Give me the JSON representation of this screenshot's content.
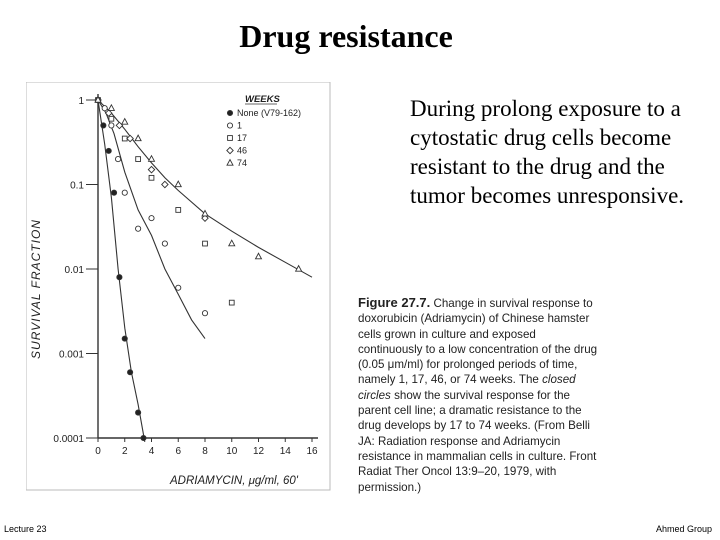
{
  "slide": {
    "title": "Drug resistance",
    "body": "During prolong exposure to a cytostatic drug cells become resistant to the drug and the tumor becomes unresponsive.",
    "footer_left": "Lecture 23",
    "footer_right": "Ahmed Group"
  },
  "figure_caption": {
    "label": "Figure 27.7.",
    "text_a": " Change in survival response to doxorubicin (Adriamycin) of Chinese hamster cells grown in culture and exposed continuously to a low concentration of the drug (0.05 μm/ml) for prolonged periods of time, namely 1, 17, 46, or 74 weeks. The ",
    "text_em": "closed circles",
    "text_b": " show the survival response for the parent cell line; a dramatic resistance to the drug develops by 17 to 74 weeks. (From Belli JA: Radiation response and Adriamycin resistance in mammalian cells in culture. Front Radiat Ther Oncol 13:9–20, 1979, with permission.)"
  },
  "chart_data": {
    "type": "scatter",
    "xlabel": "ADRIAMYCIN, μg/ml, 60'",
    "ylabel": "SURVIVAL FRACTION",
    "x_ticks": [
      "0",
      "2",
      "4",
      "6",
      "8",
      "10",
      "12",
      "14",
      "16"
    ],
    "xlim": [
      0,
      16
    ],
    "y_scale": "log",
    "ylim": [
      0.0001,
      1
    ],
    "y_ticks": [
      {
        "value": 1,
        "label": "1"
      },
      {
        "value": 0.1,
        "label": "0.1"
      },
      {
        "value": 0.01,
        "label": "0.01"
      },
      {
        "value": 0.001,
        "label": "0.001"
      },
      {
        "value": 0.0001,
        "label": "0.0001"
      }
    ],
    "legend_title": "WEEKS",
    "legend_position": "top-right",
    "series": [
      {
        "name": "None (V79-162)",
        "marker": "filled-circle",
        "points": [
          [
            0,
            1
          ],
          [
            0.4,
            0.5
          ],
          [
            0.8,
            0.25
          ],
          [
            1.2,
            0.08
          ],
          [
            1.6,
            0.008
          ],
          [
            2.0,
            0.0015
          ],
          [
            2.4,
            0.0006
          ],
          [
            3.0,
            0.0002
          ],
          [
            3.4,
            0.0001
          ]
        ],
        "curve": [
          [
            0,
            1
          ],
          [
            0.5,
            0.3
          ],
          [
            1.0,
            0.07
          ],
          [
            1.5,
            0.01
          ],
          [
            2.0,
            0.002
          ],
          [
            2.5,
            0.0006
          ],
          [
            3.0,
            0.00025
          ],
          [
            3.5,
            9e-05
          ]
        ]
      },
      {
        "name": "1",
        "marker": "open-circle",
        "points": [
          [
            0,
            1
          ],
          [
            0.5,
            0.8
          ],
          [
            1.0,
            0.5
          ],
          [
            1.5,
            0.2
          ],
          [
            2.0,
            0.08
          ],
          [
            3.0,
            0.03
          ],
          [
            4.0,
            0.04
          ],
          [
            5.0,
            0.02
          ],
          [
            6.0,
            0.006
          ],
          [
            8.0,
            0.003
          ]
        ],
        "curve": [
          [
            0,
            1
          ],
          [
            0.6,
            0.7
          ],
          [
            1.2,
            0.4
          ],
          [
            2.0,
            0.14
          ],
          [
            3.0,
            0.05
          ],
          [
            4.0,
            0.025
          ],
          [
            5.0,
            0.01
          ],
          [
            6.0,
            0.005
          ],
          [
            7.0,
            0.0025
          ],
          [
            8.0,
            0.0015
          ]
        ]
      },
      {
        "name": "17",
        "marker": "open-square",
        "points": [
          [
            0,
            1
          ],
          [
            1.0,
            0.6
          ],
          [
            2.0,
            0.35
          ],
          [
            3.0,
            0.2
          ],
          [
            4.0,
            0.12
          ],
          [
            6.0,
            0.05
          ],
          [
            8.0,
            0.02
          ],
          [
            10.0,
            0.004
          ]
        ]
      },
      {
        "name": "46",
        "marker": "open-diamond",
        "points": [
          [
            0,
            1
          ],
          [
            0.8,
            0.7
          ],
          [
            1.6,
            0.5
          ],
          [
            2.4,
            0.35
          ],
          [
            4.0,
            0.15
          ],
          [
            5.0,
            0.1
          ],
          [
            8.0,
            0.04
          ]
        ]
      },
      {
        "name": "74",
        "marker": "open-triangle",
        "points": [
          [
            0,
            1
          ],
          [
            1.0,
            0.8
          ],
          [
            2.0,
            0.55
          ],
          [
            3.0,
            0.35
          ],
          [
            4.0,
            0.2
          ],
          [
            6.0,
            0.1
          ],
          [
            8.0,
            0.045
          ],
          [
            10.0,
            0.02
          ],
          [
            12.0,
            0.014
          ],
          [
            15.0,
            0.01
          ]
        ],
        "curve": [
          [
            0,
            1
          ],
          [
            1.0,
            0.7
          ],
          [
            2.0,
            0.45
          ],
          [
            3.0,
            0.28
          ],
          [
            4.0,
            0.18
          ],
          [
            5.0,
            0.12
          ],
          [
            6.0,
            0.085
          ],
          [
            8.0,
            0.045
          ],
          [
            10.0,
            0.028
          ],
          [
            12.0,
            0.018
          ],
          [
            14.0,
            0.012
          ],
          [
            16.0,
            0.008
          ]
        ]
      }
    ]
  }
}
